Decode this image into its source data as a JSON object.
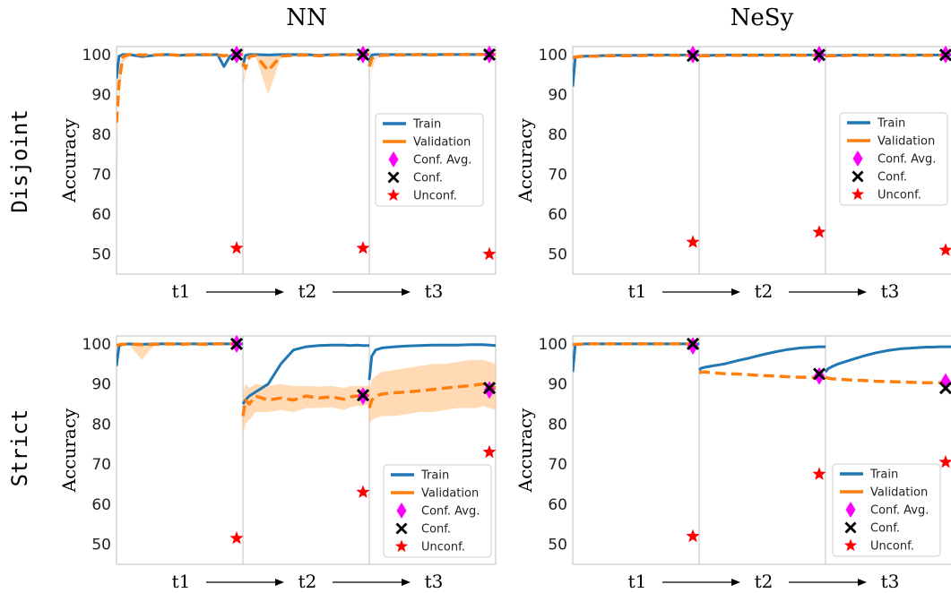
{
  "col_titles": [
    "NN",
    "NeSy"
  ],
  "row_labels": [
    "Disjoint",
    "Strict"
  ],
  "legend": {
    "train": "Train",
    "validation": "Validation",
    "conf_avg": "Conf. Avg.",
    "conf": "Conf.",
    "unconf": "Unconf."
  },
  "colors": {
    "train": "#1f77b4",
    "validation": "#ff7f0e",
    "band": "#ffbb78",
    "conf_avg": "#ff00ff",
    "conf": "#000000",
    "unconf": "#ff0000",
    "task_divider": "#bfbfbf"
  },
  "chart_data": [
    {
      "type": "line",
      "row": "Disjoint",
      "column": "NN",
      "ylabel": "Accuracy",
      "ylim": [
        45,
        102
      ],
      "yticks": [
        50,
        60,
        70,
        80,
        90,
        100
      ],
      "tasks": [
        "t1",
        "t2",
        "t3"
      ],
      "x": [
        0,
        0.02,
        0.05,
        0.1,
        0.2,
        0.3,
        0.4,
        0.5,
        0.6,
        0.7,
        0.8,
        0.85,
        0.9,
        0.95,
        1.0
      ],
      "series": [
        {
          "name": "Train",
          "task_values": [
            [
              94,
              99.6,
              100,
              100,
              99.5,
              99.8,
              100,
              99.8,
              100,
              99.9,
              100,
              97,
              99.7,
              100,
              100
            ],
            [
              97,
              99.8,
              100,
              100,
              99.9,
              100,
              100,
              100,
              99.8,
              100,
              100,
              100,
              100,
              100,
              100
            ],
            [
              98,
              99.9,
              100,
              100,
              100,
              100,
              100,
              100,
              100,
              100,
              100,
              100,
              100,
              100,
              100
            ]
          ]
        },
        {
          "name": "Validation",
          "task_values": [
            [
              83,
              93,
              99.5,
              100,
              99.9,
              99.9,
              100,
              99.8,
              99.9,
              100,
              99.9,
              99.7,
              99.9,
              100,
              100
            ],
            [
              98,
              96.5,
              99.5,
              99.8,
              96,
              99.6,
              99.8,
              99.9,
              99.7,
              99.9,
              100,
              99.9,
              100,
              100,
              100
            ],
            [
              97,
              99,
              99.6,
              99.8,
              99.9,
              99.9,
              100,
              99.9,
              100,
              100,
              100,
              100,
              100,
              100,
              100
            ]
          ]
        }
      ],
      "band": [
        [
          65,
          96,
          100,
          100,
          100,
          100,
          100,
          100,
          100,
          100,
          100,
          99,
          100,
          100,
          100
        ],
        [
          93,
          97,
          99,
          99.6,
          99.8,
          99.8,
          99.9,
          99.9,
          99.9,
          100,
          100,
          100,
          100,
          100,
          100
        ],
        [
          87,
          98,
          99.3,
          99.8,
          99.9,
          99.9,
          100,
          100,
          100,
          100,
          100,
          100,
          100,
          100,
          100
        ]
      ],
      "band_lower": [
        [
          62,
          88,
          98,
          99.6,
          99.4,
          99.5,
          99.7,
          99.5,
          99.6,
          99.8,
          99.7,
          99.2,
          99.6,
          99.8,
          99.8
        ],
        [
          92,
          95,
          99,
          99.5,
          90,
          99.2,
          99.5,
          99.6,
          99.4,
          99.7,
          99.8,
          99.8,
          99.9,
          99.9,
          99.9
        ],
        [
          87,
          96,
          99,
          99.5,
          99.7,
          99.8,
          99.9,
          99.9,
          99.9,
          99.9,
          99.9,
          99.9,
          99.9,
          99.9,
          99.9
        ]
      ],
      "conf_avg": [
        100,
        100,
        100
      ],
      "conf": [
        100,
        100,
        100
      ],
      "unconf": [
        51.5,
        51.5,
        50
      ]
    },
    {
      "type": "line",
      "row": "Disjoint",
      "column": "NeSy",
      "ylabel": "Accuracy",
      "ylim": [
        45,
        102
      ],
      "yticks": [
        50,
        60,
        70,
        80,
        90,
        100
      ],
      "tasks": [
        "t1",
        "t2",
        "t3"
      ],
      "x": [
        0,
        0.02,
        0.05,
        0.1,
        0.2,
        0.3,
        0.4,
        0.5,
        0.6,
        0.7,
        0.8,
        0.85,
        0.9,
        0.95,
        1.0
      ],
      "series": [
        {
          "name": "Train",
          "task_values": [
            [
              92,
              99.3,
              99.5,
              99.6,
              99.7,
              99.8,
              99.8,
              99.8,
              99.9,
              99.9,
              99.9,
              99.9,
              99.9,
              99.9,
              99.9
            ],
            [
              99.7,
              99.8,
              99.8,
              99.8,
              99.9,
              99.9,
              99.9,
              99.9,
              99.9,
              99.9,
              99.9,
              99.9,
              99.9,
              99.9,
              99.9
            ],
            [
              99.7,
              99.8,
              99.8,
              99.8,
              99.9,
              99.9,
              99.9,
              99.9,
              99.9,
              99.9,
              99.9,
              99.9,
              99.9,
              99.9,
              99.9
            ]
          ]
        },
        {
          "name": "Validation",
          "task_values": [
            [
              99.2,
              99.4,
              99.5,
              99.6,
              99.6,
              99.7,
              99.7,
              99.7,
              99.8,
              99.8,
              99.8,
              99.8,
              99.8,
              99.8,
              99.8
            ],
            [
              99.6,
              99.7,
              99.7,
              99.7,
              99.8,
              99.8,
              99.8,
              99.8,
              99.8,
              99.8,
              99.8,
              99.8,
              99.8,
              99.8,
              99.8
            ],
            [
              99.6,
              99.7,
              99.7,
              99.7,
              99.8,
              99.8,
              99.8,
              99.8,
              99.8,
              99.8,
              99.8,
              99.8,
              99.8,
              99.8,
              99.8
            ]
          ]
        }
      ],
      "conf_avg": [
        100,
        100,
        100
      ],
      "conf": [
        99.7,
        99.9,
        99.9
      ],
      "unconf": [
        53,
        55.5,
        51
      ]
    },
    {
      "type": "line",
      "row": "Strict",
      "column": "NN",
      "ylabel": "Accuracy",
      "ylim": [
        45,
        102
      ],
      "yticks": [
        50,
        60,
        70,
        80,
        90,
        100
      ],
      "tasks": [
        "t1",
        "t2",
        "t3"
      ],
      "x": [
        0,
        0.02,
        0.05,
        0.1,
        0.2,
        0.3,
        0.4,
        0.5,
        0.6,
        0.7,
        0.8,
        0.85,
        0.9,
        0.95,
        1.0
      ],
      "series": [
        {
          "name": "Train",
          "task_values": [
            [
              94.5,
              99.5,
              99.9,
              100,
              99.9,
              100,
              100,
              100,
              100,
              100,
              100,
              100,
              100,
              100,
              100
            ],
            [
              85,
              86,
              87,
              88,
              90,
              95,
              98.5,
              99.3,
              99.6,
              99.7,
              99.7,
              99.6,
              99.7,
              99.6,
              99.6
            ],
            [
              91,
              97,
              98.5,
              99,
              99.3,
              99.5,
              99.6,
              99.7,
              99.7,
              99.7,
              99.8,
              99.8,
              99.8,
              99.7,
              99.6
            ]
          ]
        },
        {
          "name": "Validation",
          "task_values": [
            [
              99.5,
              99.8,
              99.9,
              100,
              99.8,
              99.9,
              100,
              99.9,
              100,
              99.9,
              100,
              100,
              100,
              100,
              100
            ],
            [
              82,
              86,
              85,
              87,
              86,
              86.5,
              86,
              87,
              86.5,
              86.8,
              86.2,
              86.8,
              87,
              87,
              87.2
            ],
            [
              84,
              86,
              87,
              87.5,
              87.8,
              88,
              88.3,
              88.6,
              89,
              89.3,
              89.6,
              89.8,
              90,
              89.5,
              89
            ]
          ]
        }
      ],
      "band": [
        [
          100,
          100,
          100,
          100,
          100,
          100,
          100,
          100,
          100,
          100,
          100,
          100,
          100,
          100,
          100
        ],
        [
          87,
          90,
          89,
          90,
          89.5,
          90,
          89.5,
          89.5,
          89.3,
          89.5,
          89,
          89.5,
          89.5,
          89.5,
          89.5
        ],
        [
          88,
          91,
          92,
          93,
          93.5,
          94,
          94.5,
          95,
          95,
          95.5,
          96,
          96,
          96,
          95.5,
          95
        ]
      ],
      "band_lower": [
        [
          99,
          99.5,
          99.7,
          99.8,
          96,
          99.7,
          99.8,
          99.7,
          99.8,
          99.7,
          99.8,
          99.8,
          99.8,
          99.8,
          99.8
        ],
        [
          77,
          80,
          81,
          83,
          83,
          83.5,
          83,
          84,
          84,
          84.2,
          83.5,
          84.2,
          84.5,
          84.5,
          85
        ],
        [
          80,
          81,
          81.5,
          82,
          82,
          82.5,
          83,
          83,
          83.5,
          84,
          84,
          84,
          84.5,
          84,
          83.5
        ]
      ],
      "conf_avg": [
        100,
        87,
        88.5
      ],
      "conf": [
        100,
        87.2,
        89
      ],
      "unconf": [
        51.5,
        63,
        73
      ]
    },
    {
      "type": "line",
      "row": "Strict",
      "column": "NeSy",
      "ylabel": "Accuracy",
      "ylim": [
        45,
        102
      ],
      "yticks": [
        50,
        60,
        70,
        80,
        90,
        100
      ],
      "tasks": [
        "t1",
        "t2",
        "t3"
      ],
      "x": [
        0,
        0.02,
        0.05,
        0.1,
        0.2,
        0.3,
        0.4,
        0.5,
        0.6,
        0.7,
        0.8,
        0.85,
        0.9,
        0.95,
        1.0
      ],
      "series": [
        {
          "name": "Train",
          "task_values": [
            [
              93,
              99.8,
              99.9,
              100,
              100,
              100,
              100,
              100,
              100,
              100,
              100,
              100,
              100,
              100,
              100
            ],
            [
              93.5,
              94,
              94.2,
              94.5,
              95,
              95.8,
              96.5,
              97.3,
              98,
              98.6,
              99,
              99.1,
              99.2,
              99.3,
              99.3
            ],
            [
              93,
              93.8,
              94.3,
              95,
              96,
              97,
              97.8,
              98.4,
              98.8,
              99,
              99.2,
              99.2,
              99.3,
              99.3,
              99.3
            ]
          ]
        },
        {
          "name": "Validation",
          "task_values": [
            [
              99.8,
              99.9,
              99.9,
              100,
              100,
              100,
              100,
              100,
              100,
              100,
              100,
              100,
              100,
              100,
              100
            ],
            [
              92.8,
              93,
              93,
              92.8,
              92.6,
              92.5,
              92.3,
              92.1,
              92,
              91.8,
              91.7,
              91.7,
              91.6,
              91.6,
              91.6
            ],
            [
              91.6,
              91.5,
              91.3,
              91.2,
              91,
              90.9,
              90.7,
              90.6,
              90.5,
              90.4,
              90.3,
              90.3,
              90.3,
              90.2,
              90.2
            ]
          ]
        }
      ],
      "conf_avg": [
        99.5,
        92,
        90.5
      ],
      "conf": [
        100,
        92.5,
        89
      ],
      "unconf": [
        52,
        67.5,
        70.5
      ]
    }
  ]
}
